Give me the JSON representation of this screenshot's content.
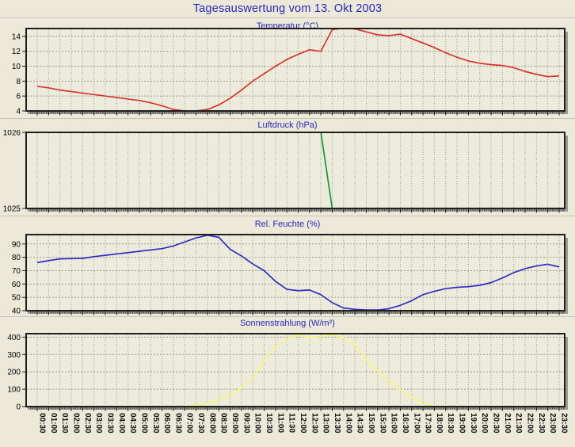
{
  "header": {
    "title": "Tagesauswertung vom 13. Okt 2003"
  },
  "colors": {
    "background": "#ece9d9",
    "plot_bg": "#ecebdc",
    "grid": "#9b9b8d",
    "frame": "#1f1f1f",
    "title_blue": "#2727bd",
    "shadow": "#9c9c94",
    "temp_line": "#d9342f",
    "pressure_line": "#109a3e",
    "humidity_line": "#2d2dc4",
    "radiation_line": "#f7f780"
  },
  "x_axis": {
    "labels": [
      "00:30",
      "01:00",
      "01:30",
      "02:00",
      "02:30",
      "03:00",
      "03:30",
      "04:00",
      "04:30",
      "05:00",
      "05:30",
      "06:00",
      "06:30",
      "07:00",
      "07:30",
      "08:00",
      "08:30",
      "09:00",
      "09:30",
      "10:00",
      "10:30",
      "11:00",
      "11:30",
      "12:00",
      "12:30",
      "13:00",
      "13:30",
      "14:00",
      "14:30",
      "15:00",
      "15:30",
      "16:00",
      "16:30",
      "17:00",
      "17:30",
      "18:00",
      "18:30",
      "19:00",
      "19:30",
      "20:00",
      "20:30",
      "21:00",
      "21:30",
      "22:00",
      "22:30",
      "23:00",
      "23:30"
    ]
  },
  "chart_data": [
    {
      "type": "line",
      "title": "Temperatur (°C)",
      "color": "temp_line",
      "ymin": 4,
      "ymax": 15.05,
      "yticks": [
        4,
        6,
        8,
        10,
        12,
        14
      ],
      "values": [
        7.3,
        7.1,
        6.8,
        6.6,
        6.4,
        6.2,
        6.0,
        5.8,
        5.6,
        5.4,
        5.1,
        4.7,
        4.2,
        4.0,
        4.0,
        4.2,
        4.8,
        5.7,
        6.8,
        8.0,
        9.0,
        10.0,
        10.9,
        11.6,
        12.2,
        12.0,
        14.9,
        15.1,
        15.0,
        14.6,
        14.2,
        14.1,
        14.3,
        13.7,
        13.1,
        12.5,
        11.8,
        11.2,
        10.7,
        10.4,
        10.2,
        10.1,
        9.8,
        9.3,
        8.9,
        8.6,
        8.7
      ]
    },
    {
      "type": "line",
      "title": "Luftdruck (hPa)",
      "color": "pressure_line",
      "ymin": 1025,
      "ymax": 1026,
      "yticks": [
        1025,
        1026
      ],
      "values": [
        1026,
        1026,
        1026,
        1026,
        1026,
        1026,
        1026,
        1026,
        1026,
        1026,
        1026,
        1026,
        1026,
        1026,
        1026,
        1026,
        1026,
        1026,
        1026,
        1026,
        1026,
        1026,
        1026,
        1026,
        1026,
        1026,
        1025,
        1025,
        1025,
        1025,
        1025,
        1025,
        1025,
        1025,
        1025,
        1025,
        1025,
        1025,
        1025,
        1025,
        1025,
        1025,
        1025,
        1025,
        1025,
        1025,
        1025
      ]
    },
    {
      "type": "line",
      "title": "Rel. Feuchte (%)",
      "color": "humidity_line",
      "ymin": 40,
      "ymax": 97,
      "yticks": [
        40,
        50,
        60,
        70,
        80,
        90
      ],
      "values": [
        76,
        77.5,
        78.8,
        79,
        79.2,
        80.5,
        81.5,
        82.5,
        83.5,
        84.5,
        85.5,
        86.5,
        88.5,
        91.5,
        94.5,
        96.5,
        95,
        86,
        81,
        75,
        70,
        62,
        56,
        55,
        55.5,
        52,
        46,
        42,
        41,
        40.5,
        40.5,
        41.5,
        44,
        47.5,
        52,
        54.5,
        56.5,
        57.5,
        58,
        59,
        61,
        64.5,
        68.5,
        71.5,
        73.5,
        74.8,
        72.8
      ]
    },
    {
      "type": "line",
      "title": "Sonnenstrahlung (W/m²)",
      "color": "radiation_line",
      "ymin": 0,
      "ymax": 420,
      "yticks": [
        0,
        100,
        200,
        300,
        400
      ],
      "values": [
        0,
        0,
        0,
        0,
        0,
        0,
        0,
        0,
        0,
        0,
        0,
        0,
        0,
        2,
        8,
        18,
        38,
        65,
        105,
        170,
        260,
        345,
        392,
        412,
        398,
        405,
        412,
        398,
        360,
        270,
        205,
        148,
        95,
        55,
        22,
        2,
        0,
        0,
        0,
        0,
        0,
        0,
        0,
        0,
        0,
        0,
        0
      ]
    }
  ]
}
